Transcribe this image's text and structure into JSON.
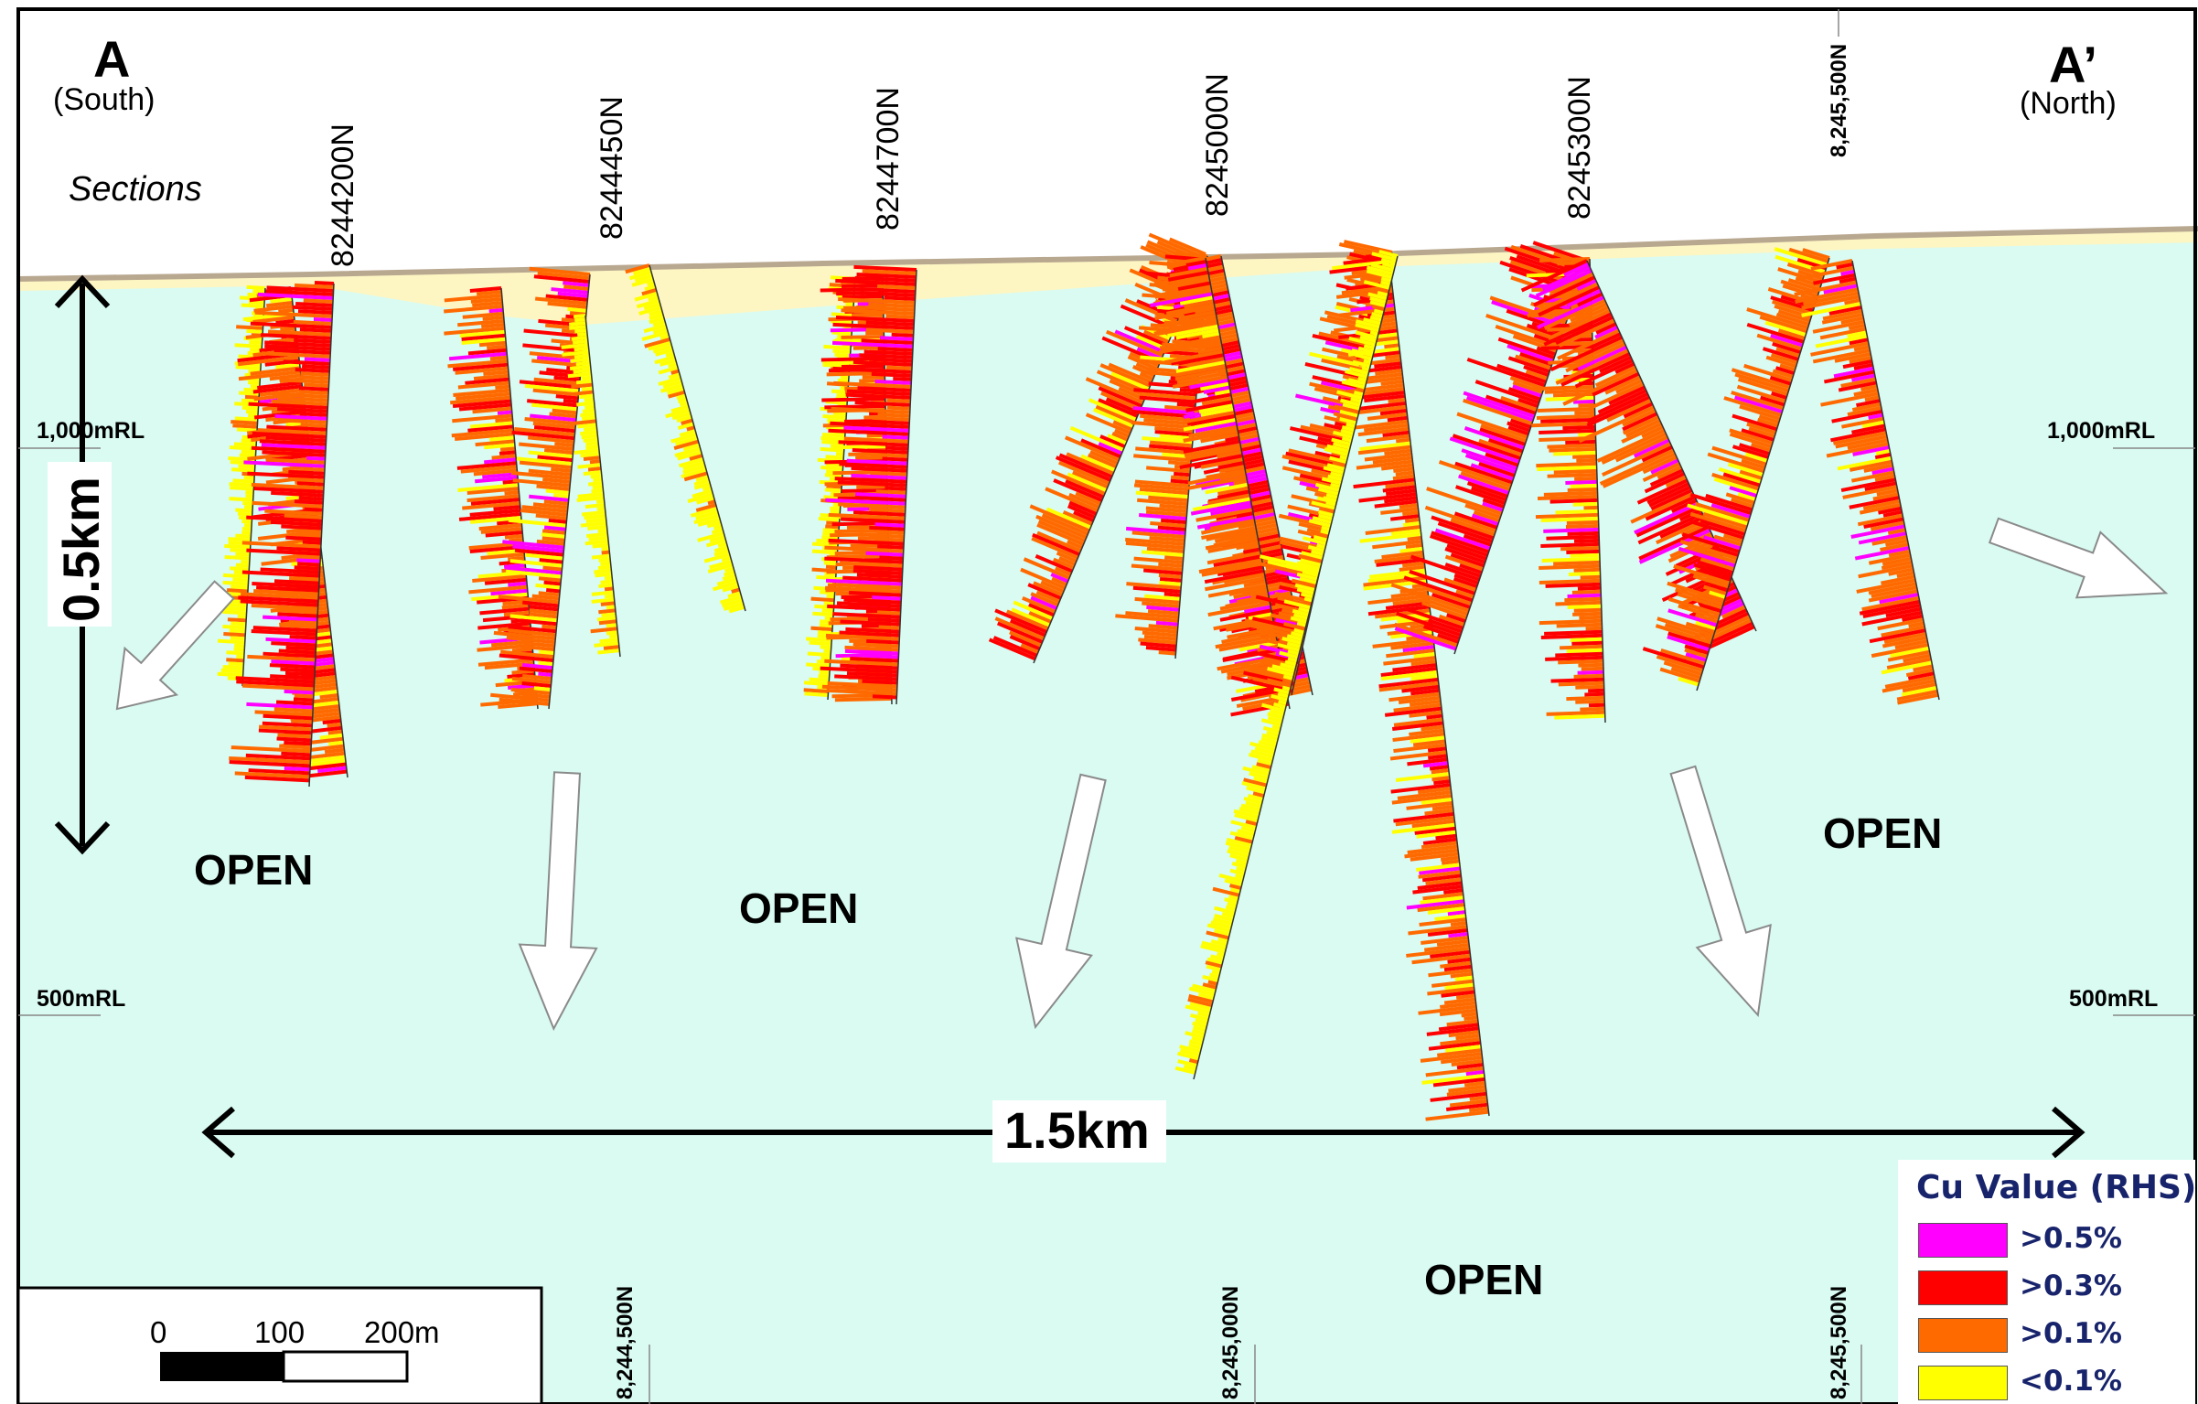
{
  "section_ends": {
    "left": {
      "letter": "A",
      "direction": "(South)"
    },
    "right": {
      "letter": "A’",
      "direction": "(North)"
    }
  },
  "sections_label": "Sections",
  "section_lines": [
    "8244200N",
    "8244450N",
    "8244700N",
    "8245000N",
    "8245300N"
  ],
  "top_grid_label": "8,245,500N",
  "bottom_grid_labels": [
    "8,244,500N",
    "8,245,000N",
    "8,245,500N"
  ],
  "rl_labels": {
    "upper": "1,000mRL",
    "lower": "500mRL"
  },
  "scale_vertical": "0.5km",
  "scale_horizontal": "1.5km",
  "open_labels": [
    "OPEN",
    "OPEN",
    "OPEN",
    "OPEN"
  ],
  "scale_bar": {
    "ticks": [
      "0",
      "100",
      "200m"
    ]
  },
  "legend": {
    "title": "Cu Value (RHS)",
    "items": [
      {
        "label": ">0.5%",
        "color": "#ff00ff"
      },
      {
        "label": ">0.3%",
        "color": "#ff0000"
      },
      {
        "label": ">0.1%",
        "color": "#ff6a00"
      },
      {
        "label": "<0.1%",
        "color": "#ffff00"
      }
    ]
  },
  "colors": {
    "background": "#d9fbf2",
    "overburden": "#fdf6c3",
    "surface": "#b9a890",
    "arrow_fill": "#ffffff"
  },
  "icons": [
    "double-arrow-icon",
    "open-direction-arrow-icon"
  ]
}
